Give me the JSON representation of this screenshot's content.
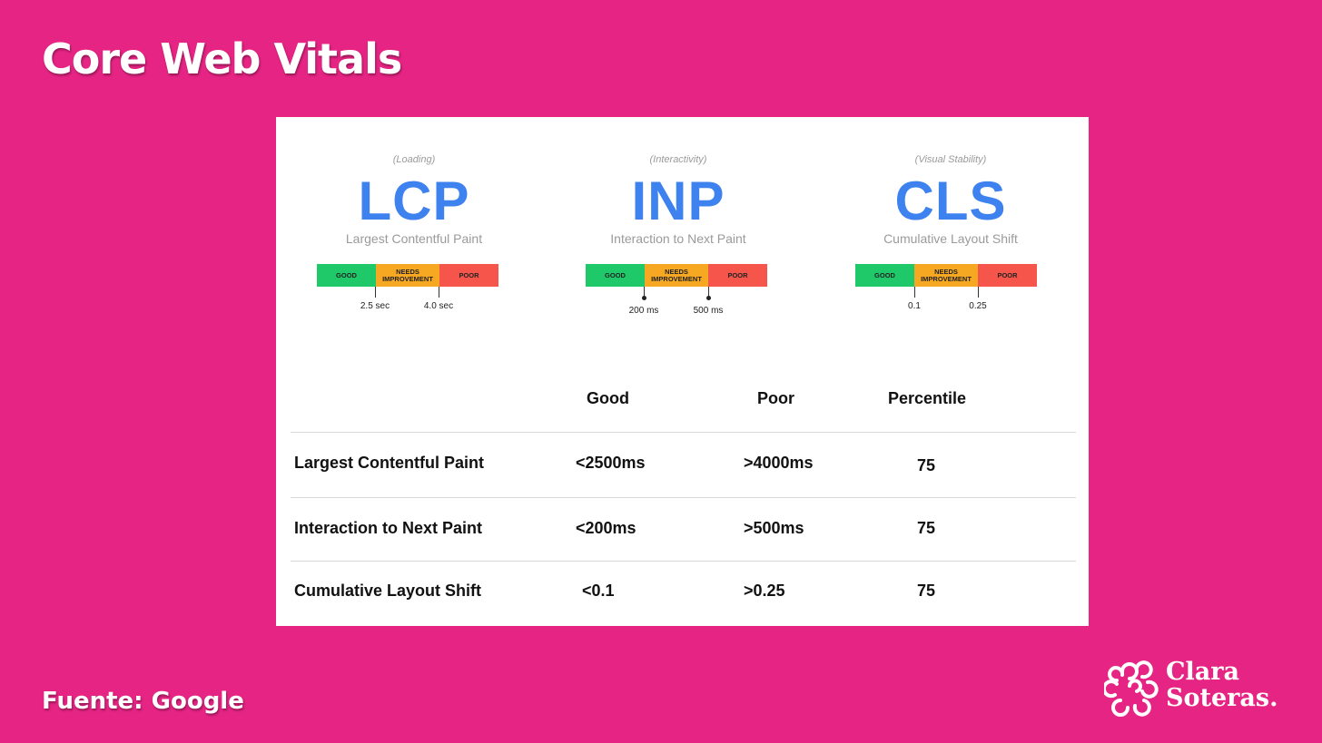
{
  "title": "Core Web Vitals",
  "footer": "Fuente: Google",
  "logo": {
    "line1": "Clara",
    "line2": "Soteras."
  },
  "metrics": [
    {
      "category": "(Loading)",
      "abbr": "LCP",
      "full": "Largest Contentful Paint",
      "segments": [
        "GOOD",
        "NEEDS IMPROVEMENT",
        "POOR"
      ],
      "thresholds": [
        "2.5 sec",
        "4.0 sec"
      ]
    },
    {
      "category": "(Interactivity)",
      "abbr": "INP",
      "full": "Interaction to Next Paint",
      "segments": [
        "GOOD",
        "NEEDS IMPROVEMENT",
        "POOR"
      ],
      "thresholds": [
        "200 ms",
        "500 ms"
      ]
    },
    {
      "category": "(Visual Stability)",
      "abbr": "CLS",
      "full": "Cumulative Layout Shift",
      "segments": [
        "GOOD",
        "NEEDS IMPROVEMENT",
        "POOR"
      ],
      "thresholds": [
        "0.1",
        "0.25"
      ]
    }
  ],
  "table": {
    "headers": [
      "Good",
      "Poor",
      "Percentile"
    ],
    "rows": [
      {
        "metric": "Largest Contentful Paint",
        "good": "<2500ms",
        "poor": ">4000ms",
        "percentile": "75"
      },
      {
        "metric": "Interaction to Next Paint",
        "good": "<200ms",
        "poor": ">500ms",
        "percentile": "75"
      },
      {
        "metric": "Cumulative Layout Shift",
        "good": "<0.1",
        "poor": ">0.25",
        "percentile": "75"
      }
    ]
  },
  "colors": {
    "background": "#e52483",
    "accent_blue": "#3d82ee",
    "good": "#1fc969",
    "needs_improvement": "#f7a823",
    "poor": "#f5554a"
  }
}
